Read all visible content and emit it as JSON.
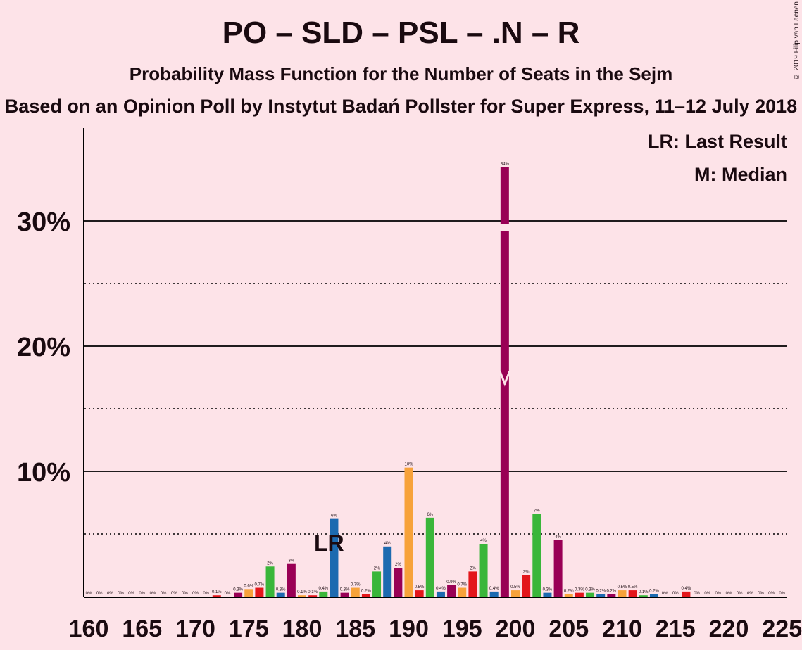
{
  "title": "PO – SLD – PSL – .N – R",
  "subtitle": "Probability Mass Function for the Number of Seats in the Sejm",
  "subtitle2": "Based on an Opinion Poll by Instytut Badań Pollster for Super Express, 11–12 July 2018",
  "copyright": "© 2019 Filip van Laenen",
  "legend": {
    "lr": "LR: Last Result",
    "m": "M: Median"
  },
  "colors": {
    "PO": "#f7a23a",
    "SLD": "#e3161b",
    "PSL": "#3ab63a",
    "N": "#1c6ab0",
    "R": "#990055",
    "bg": "#fde3e8"
  },
  "chart_data": {
    "type": "bar",
    "ylim": [
      0,
      37
    ],
    "yticks": [
      10,
      20,
      30
    ],
    "ytick_labels": [
      "10%",
      "20%",
      "30%"
    ],
    "minor_gridlines": [
      5,
      15,
      25
    ],
    "xticks": [
      160,
      165,
      170,
      175,
      180,
      185,
      190,
      195,
      200,
      205,
      210,
      215,
      220,
      225
    ],
    "last_result_seat": 182,
    "last_result_label": "LR",
    "median_seat": 199,
    "bars": [
      {
        "x": 160,
        "v": 0,
        "c": "R",
        "l": "0%"
      },
      {
        "x": 161,
        "v": 0,
        "c": "PO",
        "l": "0%"
      },
      {
        "x": 162,
        "v": 0,
        "c": "SLD",
        "l": "0%"
      },
      {
        "x": 163,
        "v": 0,
        "c": "PSL",
        "l": "0%"
      },
      {
        "x": 164,
        "v": 0,
        "c": "N",
        "l": "0%"
      },
      {
        "x": 165,
        "v": 0,
        "c": "R",
        "l": "0%"
      },
      {
        "x": 166,
        "v": 0,
        "c": "PO",
        "l": "0%"
      },
      {
        "x": 167,
        "v": 0,
        "c": "SLD",
        "l": "0%"
      },
      {
        "x": 168,
        "v": 0,
        "c": "PSL",
        "l": "0%"
      },
      {
        "x": 169,
        "v": 0,
        "c": "N",
        "l": "0%"
      },
      {
        "x": 170,
        "v": 0,
        "c": "R",
        "l": "0%"
      },
      {
        "x": 171,
        "v": 0,
        "c": "PO",
        "l": "0%"
      },
      {
        "x": 172,
        "v": 0.1,
        "c": "SLD",
        "l": "0.1%"
      },
      {
        "x": 173,
        "v": 0,
        "c": "PSL",
        "l": "0%"
      },
      {
        "x": 174,
        "v": 0.3,
        "c": "R",
        "l": "0.3%"
      },
      {
        "x": 175,
        "v": 0.6,
        "c": "PO",
        "l": "0.6%"
      },
      {
        "x": 176,
        "v": 0.7,
        "c": "SLD",
        "l": "0.7%"
      },
      {
        "x": 177,
        "v": 2.4,
        "c": "PSL",
        "l": "2%"
      },
      {
        "x": 178,
        "v": 0.3,
        "c": "N",
        "l": "0.3%"
      },
      {
        "x": 179,
        "v": 2.6,
        "c": "R",
        "l": "3%"
      },
      {
        "x": 180,
        "v": 0.1,
        "c": "PO",
        "l": "0.1%"
      },
      {
        "x": 181,
        "v": 0.1,
        "c": "SLD",
        "l": "0.1%"
      },
      {
        "x": 182,
        "v": 0.4,
        "c": "PSL",
        "l": "0.4%"
      },
      {
        "x": 183,
        "v": 6.2,
        "c": "N",
        "l": "6%"
      },
      {
        "x": 184,
        "v": 0.3,
        "c": "R",
        "l": "0.3%"
      },
      {
        "x": 185,
        "v": 0.7,
        "c": "PO",
        "l": "0.7%"
      },
      {
        "x": 186,
        "v": 0.2,
        "c": "SLD",
        "l": "0.2%"
      },
      {
        "x": 187,
        "v": 2.0,
        "c": "PSL",
        "l": "2%"
      },
      {
        "x": 188,
        "v": 4.0,
        "c": "N",
        "l": "4%"
      },
      {
        "x": 189,
        "v": 2.3,
        "c": "R",
        "l": "2%"
      },
      {
        "x": 190,
        "v": 10.3,
        "c": "PO",
        "l": "10%"
      },
      {
        "x": 191,
        "v": 0.5,
        "c": "SLD",
        "l": "0.5%"
      },
      {
        "x": 192,
        "v": 6.3,
        "c": "PSL",
        "l": "6%"
      },
      {
        "x": 193,
        "v": 0.4,
        "c": "N",
        "l": "0.4%"
      },
      {
        "x": 194,
        "v": 0.9,
        "c": "R",
        "l": "0.9%"
      },
      {
        "x": 195,
        "v": 0.7,
        "c": "PO",
        "l": "0.7%"
      },
      {
        "x": 196,
        "v": 2.0,
        "c": "SLD",
        "l": "2%"
      },
      {
        "x": 197,
        "v": 4.2,
        "c": "PSL",
        "l": "4%"
      },
      {
        "x": 198,
        "v": 0.4,
        "c": "N",
        "l": "0.4%"
      },
      {
        "x": 199,
        "v": 34.3,
        "c": "R",
        "l": "34%"
      },
      {
        "x": 200,
        "v": 0.5,
        "c": "PO",
        "l": "0.5%"
      },
      {
        "x": 201,
        "v": 1.7,
        "c": "SLD",
        "l": "2%"
      },
      {
        "x": 202,
        "v": 6.6,
        "c": "PSL",
        "l": "7%"
      },
      {
        "x": 203,
        "v": 0.3,
        "c": "N",
        "l": "0.3%"
      },
      {
        "x": 204,
        "v": 4.5,
        "c": "R",
        "l": "4%"
      },
      {
        "x": 205,
        "v": 0.2,
        "c": "PO",
        "l": "0.2%"
      },
      {
        "x": 206,
        "v": 0.3,
        "c": "SLD",
        "l": "0.3%"
      },
      {
        "x": 207,
        "v": 0.3,
        "c": "PSL",
        "l": "0.3%"
      },
      {
        "x": 208,
        "v": 0.2,
        "c": "N",
        "l": "0.2%"
      },
      {
        "x": 209,
        "v": 0.2,
        "c": "R",
        "l": "0.2%"
      },
      {
        "x": 210,
        "v": 0.5,
        "c": "PO",
        "l": "0.5%"
      },
      {
        "x": 211,
        "v": 0.5,
        "c": "SLD",
        "l": "0.5%"
      },
      {
        "x": 212,
        "v": 0.1,
        "c": "PSL",
        "l": "0.1%"
      },
      {
        "x": 213,
        "v": 0.2,
        "c": "N",
        "l": "0.2%"
      },
      {
        "x": 214,
        "v": 0,
        "c": "R",
        "l": "0%"
      },
      {
        "x": 215,
        "v": 0,
        "c": "PO",
        "l": "0%"
      },
      {
        "x": 216,
        "v": 0.4,
        "c": "SLD",
        "l": "0.4%"
      },
      {
        "x": 217,
        "v": 0,
        "c": "PSL",
        "l": "0%"
      },
      {
        "x": 218,
        "v": 0,
        "c": "N",
        "l": "0%"
      },
      {
        "x": 219,
        "v": 0,
        "c": "R",
        "l": "0%"
      },
      {
        "x": 220,
        "v": 0,
        "c": "PO",
        "l": "0%"
      },
      {
        "x": 221,
        "v": 0,
        "c": "SLD",
        "l": "0%"
      },
      {
        "x": 222,
        "v": 0,
        "c": "PSL",
        "l": "0%"
      },
      {
        "x": 223,
        "v": 0,
        "c": "N",
        "l": "0%"
      },
      {
        "x": 224,
        "v": 0,
        "c": "R",
        "l": "0%"
      },
      {
        "x": 225,
        "v": 0,
        "c": "PO",
        "l": "0%"
      }
    ]
  }
}
